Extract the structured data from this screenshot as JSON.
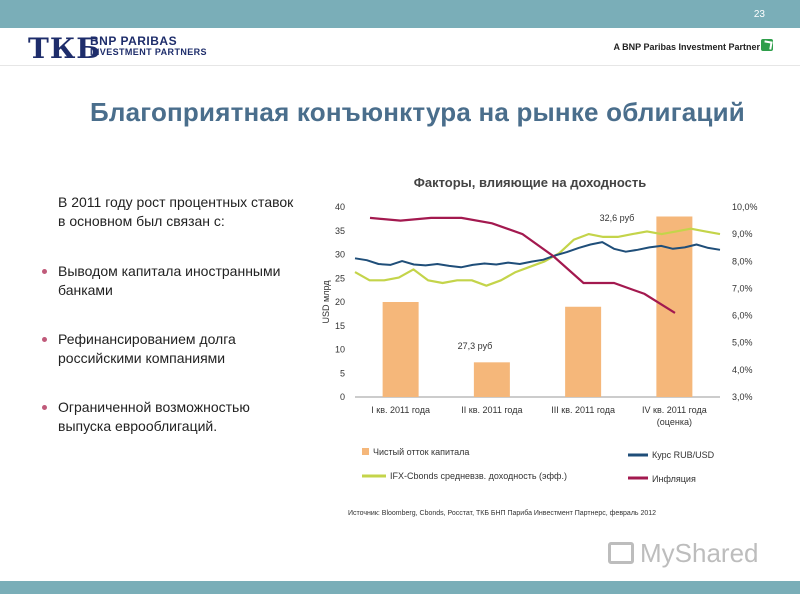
{
  "header": {
    "page_number": "23",
    "logo_mark": "ТКБ",
    "logo_line1": "BNP PARIBAS",
    "logo_line2": "INVESTMENT PARTNERS",
    "partner_text": "A BNP Paribas Investment Partner"
  },
  "title": "Благоприятная конъюнктура на рынке облигаций",
  "intro": "В 2011 году рост процентных ставок в основном был связан с:",
  "bullets": [
    "Выводом капитала иностранными банками",
    "Рефинансированием долга российскими компаниями",
    "Ограниченной возможностью выпуска еврооблигаций."
  ],
  "watermark": "MyShared",
  "colors": {
    "bars": "#f5b77a",
    "rub": "#1f4e79",
    "ifx": "#c4d44a",
    "inflation": "#a3194f",
    "accent": "#7aaeb8"
  },
  "chart_data": {
    "type": "bar",
    "title": "Факторы, влияющие на доходность",
    "ylabel": "USD млрд",
    "ylim": [
      0,
      40
    ],
    "y_ticks": [
      "0",
      "5",
      "10",
      "15",
      "20",
      "25",
      "30",
      "35",
      "40"
    ],
    "y2lim": [
      3.0,
      10.0
    ],
    "y2_ticks": [
      "3,0%",
      "4,0%",
      "5,0%",
      "6,0%",
      "7,0%",
      "8,0%",
      "9,0%",
      "10,0%"
    ],
    "categories": [
      "I кв. 2011 года",
      "II кв. 2011 года",
      "III кв. 2011 года",
      "IV кв. 2011 года",
      "(оценка)"
    ],
    "bars": {
      "name": "Чистый отток капитала",
      "values": [
        20,
        7.3,
        19,
        38
      ]
    },
    "inflation": {
      "name": "Инфляция",
      "values": [
        9.6,
        9.5,
        9.6,
        9.6,
        9.4,
        9.0,
        8.2,
        7.2,
        7.2,
        6.8,
        6.1
      ]
    },
    "rub": {
      "name": "Курс RUB/USD",
      "values": [
        29.2,
        28.8,
        28.0,
        27.8,
        28.6,
        27.9,
        27.7,
        28.0,
        27.6,
        27.3,
        27.8,
        28.1,
        27.9,
        28.3,
        28.0,
        28.5,
        28.9,
        29.8,
        30.5,
        31.4,
        32.1,
        32.6,
        31.2,
        30.6,
        31.0,
        31.5,
        31.8,
        31.2,
        31.5,
        32.1,
        31.4,
        31.0
      ]
    },
    "ifx": {
      "name": "IFX-Cbonds средневзв. доходность (эфф.)",
      "values": [
        7.6,
        7.3,
        7.3,
        7.4,
        7.7,
        7.3,
        7.2,
        7.3,
        7.3,
        7.1,
        7.3,
        7.6,
        7.8,
        8.0,
        8.3,
        8.8,
        9.0,
        8.9,
        8.9,
        9.0,
        9.1,
        9.0,
        9.1,
        9.2,
        9.1,
        9.0
      ]
    },
    "annotations": [
      "32,6 руб",
      "27,3 руб"
    ],
    "source": "Источник: Bloomberg, Cbonds, Росстат, ТКБ БНП Париба Инвестмент Партнерс, февраль 2012"
  }
}
